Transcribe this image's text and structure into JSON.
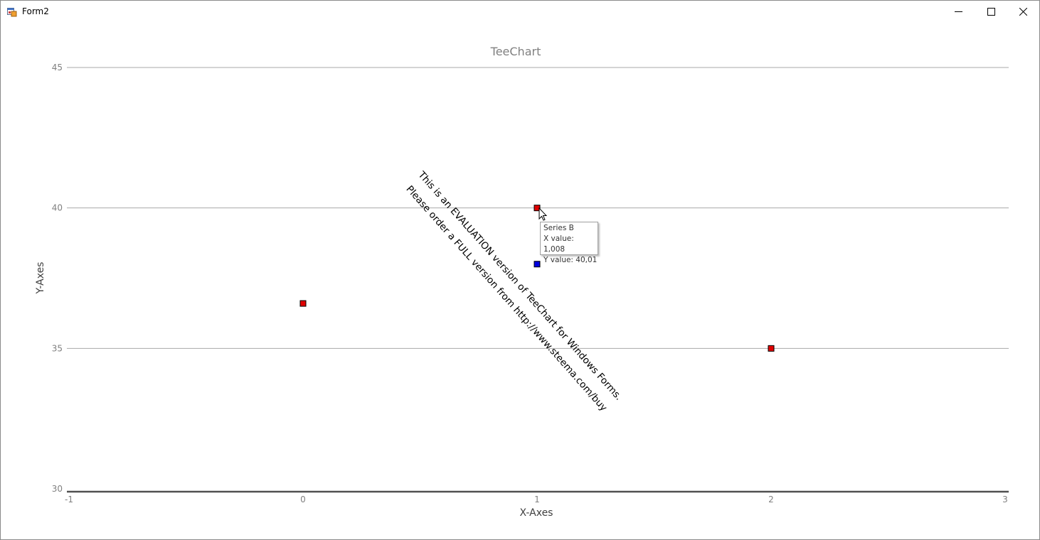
{
  "window": {
    "title": "Form2",
    "icons": {
      "app": "form-app-icon",
      "minimize": "minimize-icon",
      "maximize": "maximize-icon",
      "close": "close-icon"
    }
  },
  "chart_data": {
    "type": "scatter",
    "title": "TeeChart",
    "xlabel": "X-Axes",
    "ylabel": "Y-Axes",
    "xlim": [
      -1,
      3
    ],
    "ylim": [
      30,
      45
    ],
    "xticks": [
      "-1",
      "0",
      "1",
      "2",
      "3"
    ],
    "yticks": [
      "30",
      "35",
      "40",
      "45"
    ],
    "grid": true,
    "series": [
      {
        "color": "#e00000",
        "points": [
          [
            0,
            36.6
          ],
          [
            1.0,
            40.0
          ],
          [
            2,
            35.0
          ]
        ]
      },
      {
        "color": "#0000e0",
        "points": [
          [
            1,
            38.0
          ]
        ]
      }
    ],
    "tooltip": {
      "series": "Series B",
      "x_text": "X value: 1,008",
      "y_text": "Y value: 40,01"
    },
    "watermark": {
      "line1": "This is an EVALUATION version of TeeChart for Windows Forms.",
      "line2": "Please order a FULL version from http://www.steema.com/buy"
    }
  }
}
